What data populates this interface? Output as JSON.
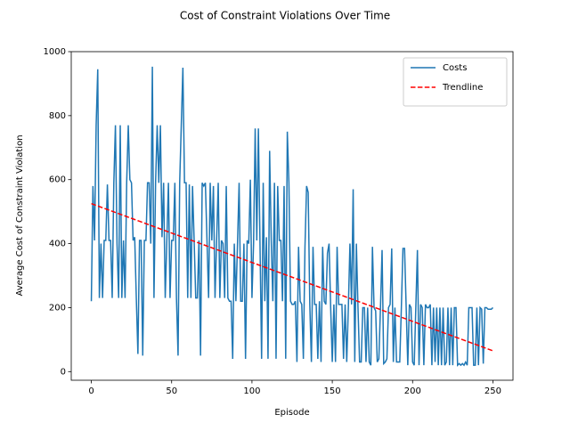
{
  "chart_data": {
    "type": "line",
    "title": "Cost of Constraint Violations Over Time",
    "xlabel": "Episode",
    "ylabel": "Average Cost of Constraint Violation",
    "xlim": [
      -12.5,
      262.5
    ],
    "xticks": [
      0,
      50,
      100,
      150,
      200,
      250
    ],
    "ylim": [
      -27,
      1000
    ],
    "yticks": [
      0,
      200,
      400,
      600,
      800,
      1000
    ],
    "legend": "upper right",
    "series": [
      {
        "name": "Costs",
        "color": "#1f77b4",
        "style": "solid",
        "x": [
          0,
          1,
          2,
          3,
          4,
          5,
          6,
          7,
          8,
          9,
          10,
          11,
          12,
          13,
          14,
          15,
          16,
          17,
          18,
          19,
          20,
          21,
          22,
          23,
          24,
          25,
          26,
          27,
          28,
          29,
          30,
          31,
          32,
          33,
          34,
          35,
          36,
          37,
          38,
          39,
          40,
          41,
          42,
          43,
          44,
          45,
          46,
          47,
          48,
          49,
          50,
          51,
          52,
          53,
          54,
          55,
          56,
          57,
          58,
          59,
          60,
          61,
          62,
          63,
          64,
          65,
          66,
          67,
          68,
          69,
          70,
          71,
          72,
          73,
          74,
          75,
          76,
          77,
          78,
          79,
          80,
          81,
          82,
          83,
          84,
          85,
          86,
          87,
          88,
          89,
          90,
          91,
          92,
          93,
          94,
          95,
          96,
          97,
          98,
          99,
          100,
          101,
          102,
          103,
          104,
          105,
          106,
          107,
          108,
          109,
          110,
          111,
          112,
          113,
          114,
          115,
          116,
          117,
          118,
          119,
          120,
          121,
          122,
          123,
          124,
          125,
          126,
          127,
          128,
          129,
          130,
          131,
          132,
          133,
          134,
          135,
          136,
          137,
          138,
          139,
          140,
          141,
          142,
          143,
          144,
          145,
          146,
          147,
          148,
          149,
          150,
          151,
          152,
          153,
          154,
          155,
          156,
          157,
          158,
          159,
          160,
          161,
          162,
          163,
          164,
          165,
          166,
          167,
          168,
          169,
          170,
          171,
          172,
          173,
          174,
          175,
          176,
          177,
          178,
          179,
          180,
          181,
          182,
          183,
          184,
          185,
          186,
          187,
          188,
          189,
          190,
          191,
          192,
          193,
          194,
          195,
          196,
          197,
          198,
          199,
          200,
          201,
          202,
          203,
          204,
          205,
          206,
          207,
          208,
          209,
          210,
          211,
          212,
          213,
          214,
          215,
          216,
          217,
          218,
          219,
          220,
          221,
          222,
          223,
          224,
          225,
          226,
          227,
          228,
          229,
          230,
          231,
          232,
          233,
          234,
          235,
          236,
          237,
          238,
          239,
          240,
          241,
          242,
          243,
          244,
          245,
          246,
          247,
          248,
          249,
          250
        ],
        "values": [
          220,
          580,
          410,
          770,
          945,
          230,
          400,
          230,
          410,
          410,
          585,
          410,
          410,
          230,
          590,
          770,
          400,
          230,
          770,
          230,
          410,
          230,
          590,
          770,
          600,
          590,
          410,
          420,
          230,
          55,
          410,
          410,
          50,
          410,
          410,
          590,
          590,
          400,
          953,
          230,
          590,
          770,
          590,
          770,
          420,
          590,
          230,
          410,
          590,
          230,
          410,
          410,
          590,
          230,
          50,
          590,
          770,
          950,
          590,
          590,
          230,
          585,
          230,
          580,
          410,
          230,
          230,
          410,
          50,
          590,
          580,
          590,
          410,
          230,
          590,
          410,
          580,
          230,
          410,
          590,
          230,
          410,
          400,
          230,
          580,
          230,
          220,
          220,
          40,
          400,
          220,
          400,
          590,
          220,
          220,
          400,
          40,
          410,
          400,
          600,
          230,
          400,
          760,
          410,
          760,
          400,
          40,
          590,
          220,
          420,
          40,
          690,
          410,
          220,
          590,
          40,
          580,
          410,
          410,
          220,
          580,
          40,
          750,
          590,
          220,
          210,
          210,
          220,
          30,
          390,
          220,
          210,
          40,
          390,
          580,
          560,
          210,
          30,
          390,
          210,
          210,
          40,
          220,
          30,
          390,
          220,
          210,
          370,
          400,
          200,
          30,
          210,
          30,
          390,
          210,
          210,
          210,
          40,
          210,
          30,
          200,
          400,
          210,
          570,
          30,
          400,
          200,
          30,
          30,
          200,
          200,
          30,
          200,
          30,
          20,
          390,
          200,
          190,
          30,
          40,
          200,
          380,
          25,
          30,
          40,
          200,
          210,
          385,
          30,
          200,
          30,
          30,
          30,
          200,
          385,
          385,
          200,
          20,
          210,
          200,
          30,
          20,
          200,
          380,
          20,
          210,
          200,
          20,
          210,
          200,
          200,
          210,
          20,
          200,
          30,
          200,
          20,
          200,
          20,
          200,
          20,
          30,
          200,
          20,
          200,
          20,
          200,
          200,
          20,
          25,
          20,
          25,
          20,
          30,
          20,
          200,
          200,
          200,
          20,
          20,
          200,
          20,
          200,
          195,
          25,
          200,
          200,
          195,
          195,
          195,
          200
        ]
      },
      {
        "name": "Trendline",
        "color": "#ff0000",
        "style": "dashed",
        "x": [
          0,
          250
        ],
        "values": [
          525,
          65
        ]
      }
    ]
  }
}
